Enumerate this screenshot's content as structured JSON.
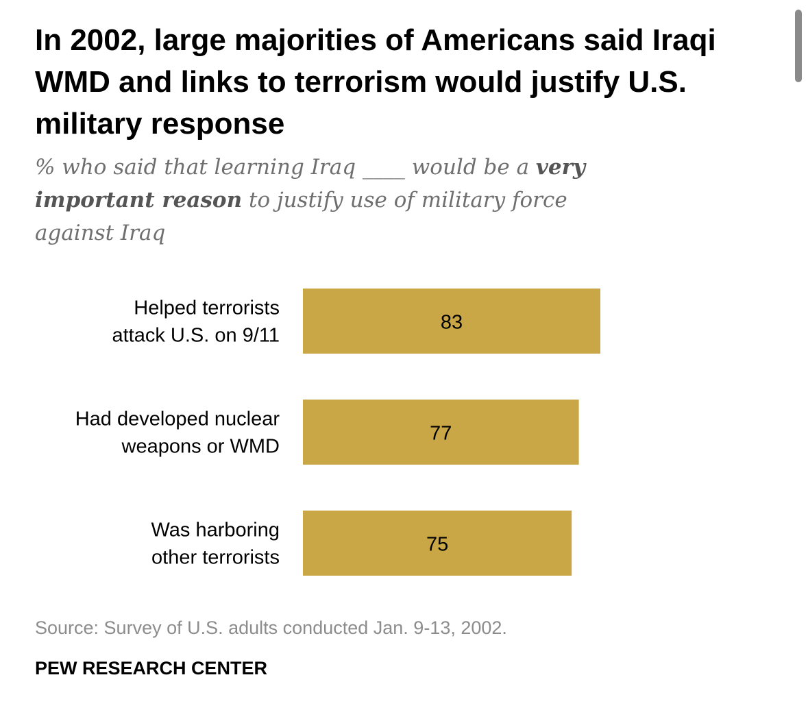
{
  "chart_data": {
    "type": "bar",
    "orientation": "horizontal",
    "title": "In 2002, large majorities of Americans said Iraqi WMD and links to terrorism would justify U.S. military response",
    "subtitle": {
      "before": "% who said that learning Iraq ",
      "blank": "____",
      "middle": " would be a ",
      "emphasis": "very important reason",
      "after": " to justify use of military force against Iraq"
    },
    "categories": [
      [
        "Helped terrorists",
        "attack U.S. on 9/11"
      ],
      [
        "Had developed nuclear",
        "weapons or WMD"
      ],
      [
        "Was harboring",
        "other terrorists"
      ]
    ],
    "values": [
      83,
      77,
      75
    ],
    "data_labels": [
      "83",
      "77",
      "75"
    ],
    "xlim": [
      0,
      100
    ],
    "grid": false,
    "legend": "none",
    "bar_color": "#c9a646",
    "label_color": "#000000"
  },
  "source": "Source: Survey of U.S. adults conducted Jan. 9-13, 2002.",
  "brand": "PEW RESEARCH CENTER",
  "colors": {
    "subtitle": "#6f6f6f",
    "source": "#8c8c8c",
    "scrollbar": "#8a8a8a"
  }
}
